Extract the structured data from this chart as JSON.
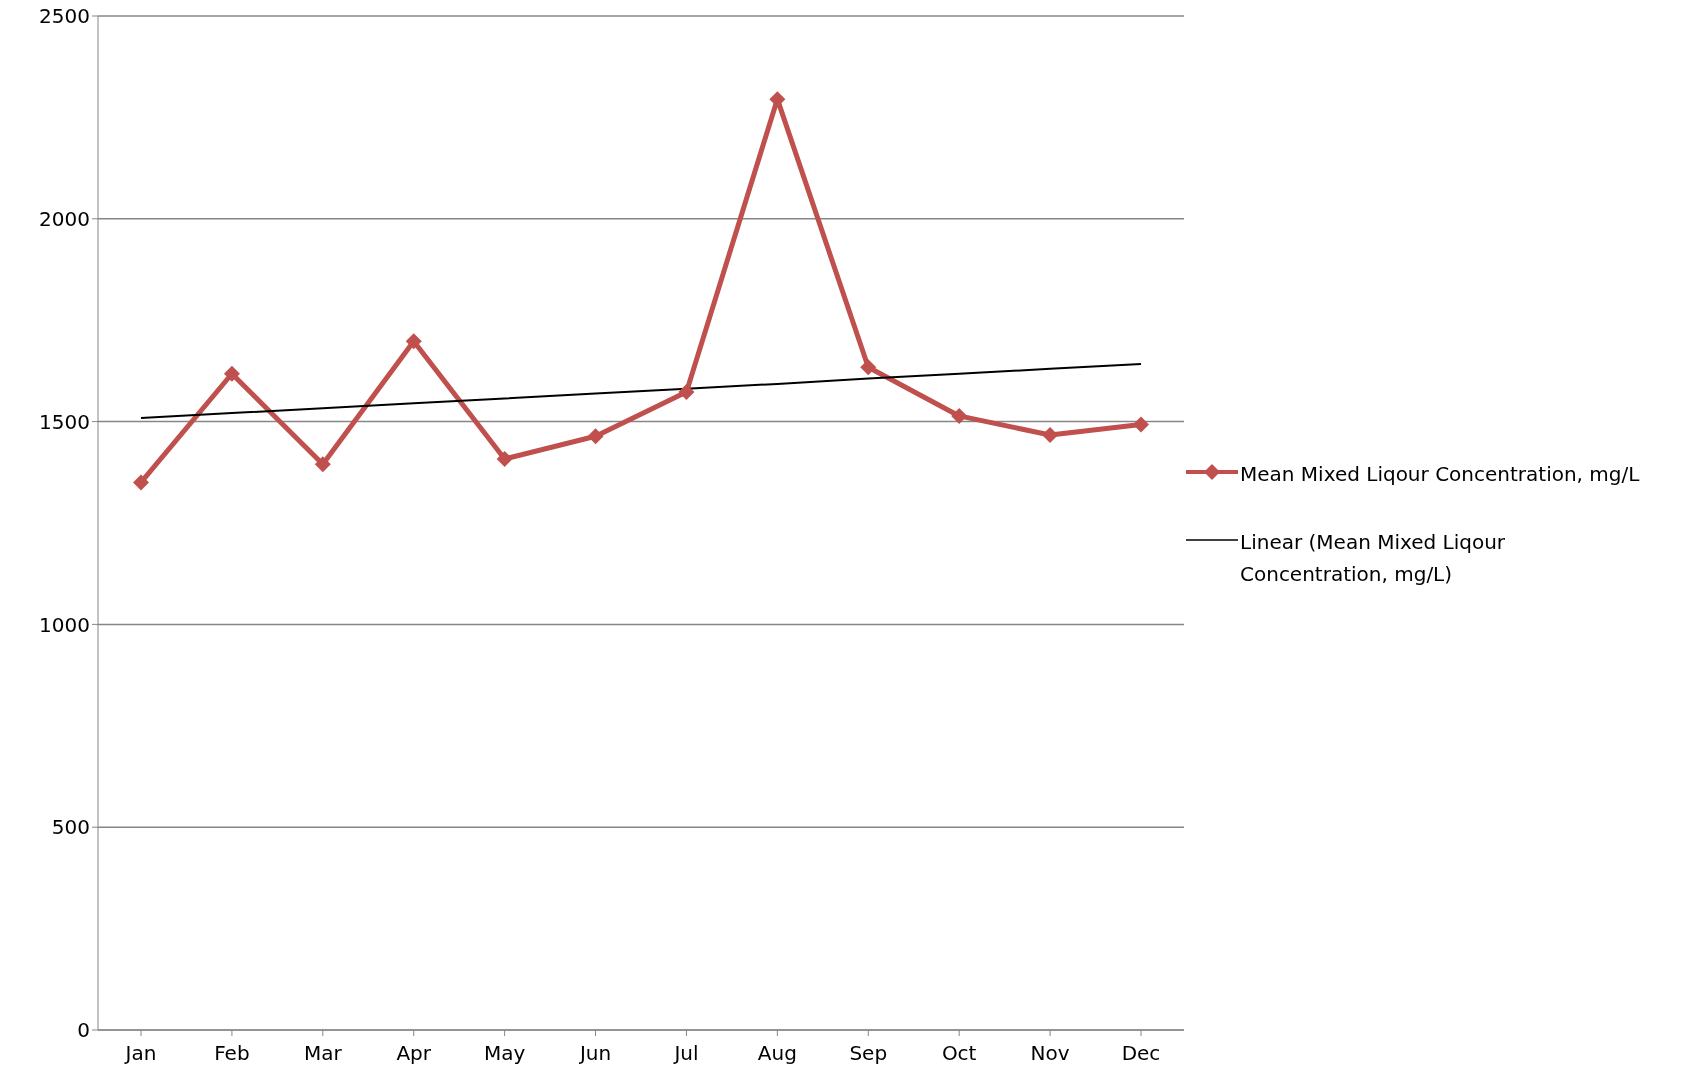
{
  "chart_data": {
    "type": "line",
    "categories": [
      "Jan",
      "Feb",
      "Mar",
      "Apr",
      "May",
      "Jun",
      "Jul",
      "Aug",
      "Sep",
      "Oct",
      "Nov",
      "Dec"
    ],
    "series": [
      {
        "name": "Mean Mixed Liqour Concentration, mg/L",
        "color": "#c0504d",
        "marker": "diamond",
        "values": [
          1350,
          1618,
          1395,
          1698,
          1408,
          1464,
          1573,
          2295,
          1634,
          1514,
          1467,
          1493
        ]
      },
      {
        "name": "Linear (Mean Mixed Liqour Concentration, mg/L)",
        "color": "#000000",
        "marker": "none",
        "values": [
          1509,
          1521,
          1533,
          1545,
          1557,
          1569,
          1581,
          1593,
          1606,
          1618,
          1630,
          1642
        ]
      }
    ],
    "ylim": [
      0,
      2500
    ],
    "yticks": [
      0,
      500,
      1000,
      1500,
      2000,
      2500
    ],
    "grid": "y",
    "legend": "right"
  }
}
